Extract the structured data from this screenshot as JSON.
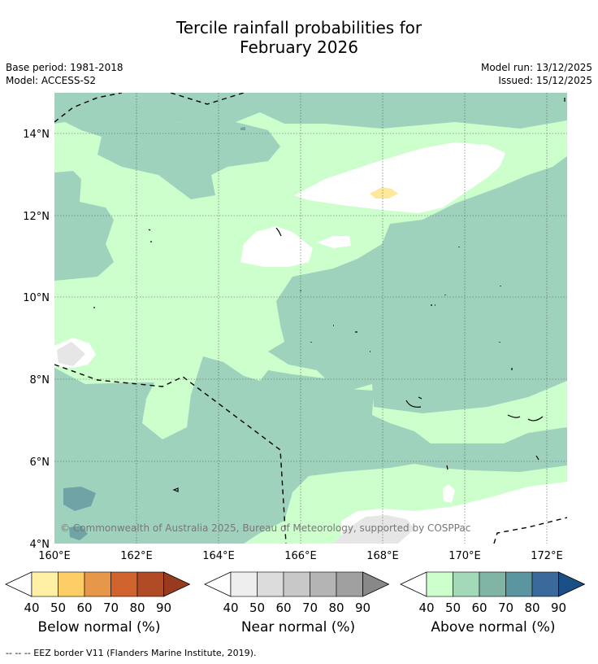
{
  "title": {
    "line1": "Tercile rainfall probabilities for",
    "line2": "February 2026"
  },
  "meta": {
    "base_period": "Base period: 1981-2018",
    "model": "Model: ACCESS-S2",
    "model_run": "Model run: 13/12/2025",
    "issued": "Issued: 15/12/2025"
  },
  "axes": {
    "lat_labels": [
      "14°N",
      "12°N",
      "10°N",
      "8°N",
      "6°N",
      "4°N"
    ],
    "lon_labels": [
      "160°E",
      "162°E",
      "164°E",
      "166°E",
      "168°E",
      "170°E",
      "172°E"
    ]
  },
  "copyright": "© Commonwealth of Australia 2025, Bureau of Meteorology, supported by COSPPac",
  "legends": [
    {
      "label": "Below normal (%)",
      "colors": [
        "#fff0a6",
        "#fdce66",
        "#e6974a",
        "#d0632e",
        "#b04b26",
        "#983a1e"
      ],
      "ticks": [
        "40",
        "50",
        "60",
        "70",
        "80",
        "90"
      ]
    },
    {
      "label": "Near normal (%)",
      "colors": [
        "#eeeeee",
        "#dcdcdc",
        "#c8c8c8",
        "#b4b4b4",
        "#a0a0a0",
        "#888888"
      ],
      "ticks": [
        "40",
        "50",
        "60",
        "70",
        "80",
        "90"
      ]
    },
    {
      "label": "Above normal (%)",
      "colors": [
        "#ccffcc",
        "#a3d9b9",
        "#80b5a6",
        "#5a95a0",
        "#3a6a9a",
        "#1a4f85"
      ],
      "ticks": [
        "40",
        "50",
        "60",
        "70",
        "80",
        "90"
      ]
    }
  ],
  "footnote": "-- -- -- EEZ border V11 (Flanders Marine Institute, 2019).",
  "colors": {
    "above_40": "#ccffcc",
    "above_50": "#9fd2bd",
    "above_70": "#6fa3a5",
    "near_50": "#e6e6e6",
    "below_40": "#fde99b"
  }
}
